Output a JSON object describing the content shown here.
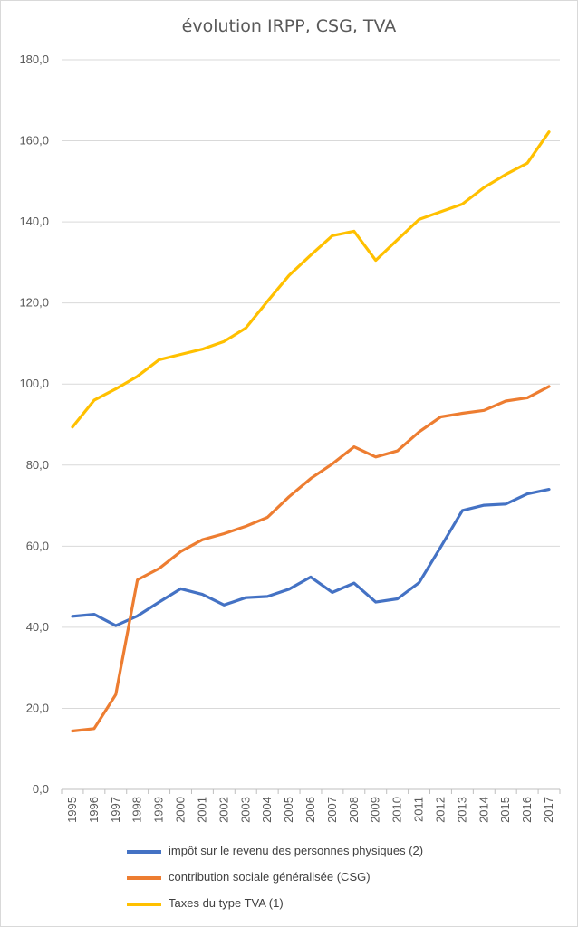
{
  "chart_data": {
    "type": "line",
    "title": "évolution IRPP, CSG, TVA",
    "xlabel": "",
    "ylabel": "",
    "ylim": [
      0,
      180
    ],
    "yticks": [
      "0,0",
      "20,0",
      "40,0",
      "60,0",
      "80,0",
      "100,0",
      "120,0",
      "140,0",
      "160,0",
      "180,0"
    ],
    "grid": true,
    "legend_position": "bottom",
    "categories": [
      "1995",
      "1996",
      "1997",
      "1998",
      "1999",
      "2000",
      "2001",
      "2002",
      "2003",
      "2004",
      "2005",
      "2006",
      "2007",
      "2008",
      "2009",
      "2010",
      "2011",
      "2012",
      "2013",
      "2014",
      "2015",
      "2016",
      "2017"
    ],
    "series": [
      {
        "name": "impôt sur le revenu des personnes physiques (2)",
        "color": "#4472c4",
        "values": [
          42.7,
          43.2,
          40.4,
          42.8,
          46.2,
          49.5,
          48.1,
          45.5,
          47.3,
          47.6,
          49.4,
          52.4,
          48.6,
          50.9,
          46.2,
          47.0,
          51.0,
          59.8,
          68.8,
          70.1,
          70.4,
          72.9,
          74.0
        ]
      },
      {
        "name": "contribution sociale généralisée (CSG)",
        "color": "#ed7d31",
        "values": [
          14.4,
          15.0,
          23.4,
          51.7,
          54.5,
          58.7,
          61.6,
          63.1,
          64.9,
          67.1,
          72.2,
          76.7,
          80.3,
          84.5,
          82.0,
          83.5,
          88.2,
          91.9,
          92.8,
          93.5,
          95.8,
          96.6,
          99.4
        ]
      },
      {
        "name": "Taxes du type TVA (1)",
        "color": "#ffc000",
        "values": [
          89.4,
          96.0,
          98.8,
          101.9,
          106.0,
          107.3,
          108.6,
          110.5,
          113.8,
          120.4,
          126.8,
          131.8,
          136.6,
          137.7,
          130.5,
          135.6,
          140.6,
          142.5,
          144.4,
          148.5,
          151.7,
          154.5,
          162.2
        ]
      }
    ]
  }
}
